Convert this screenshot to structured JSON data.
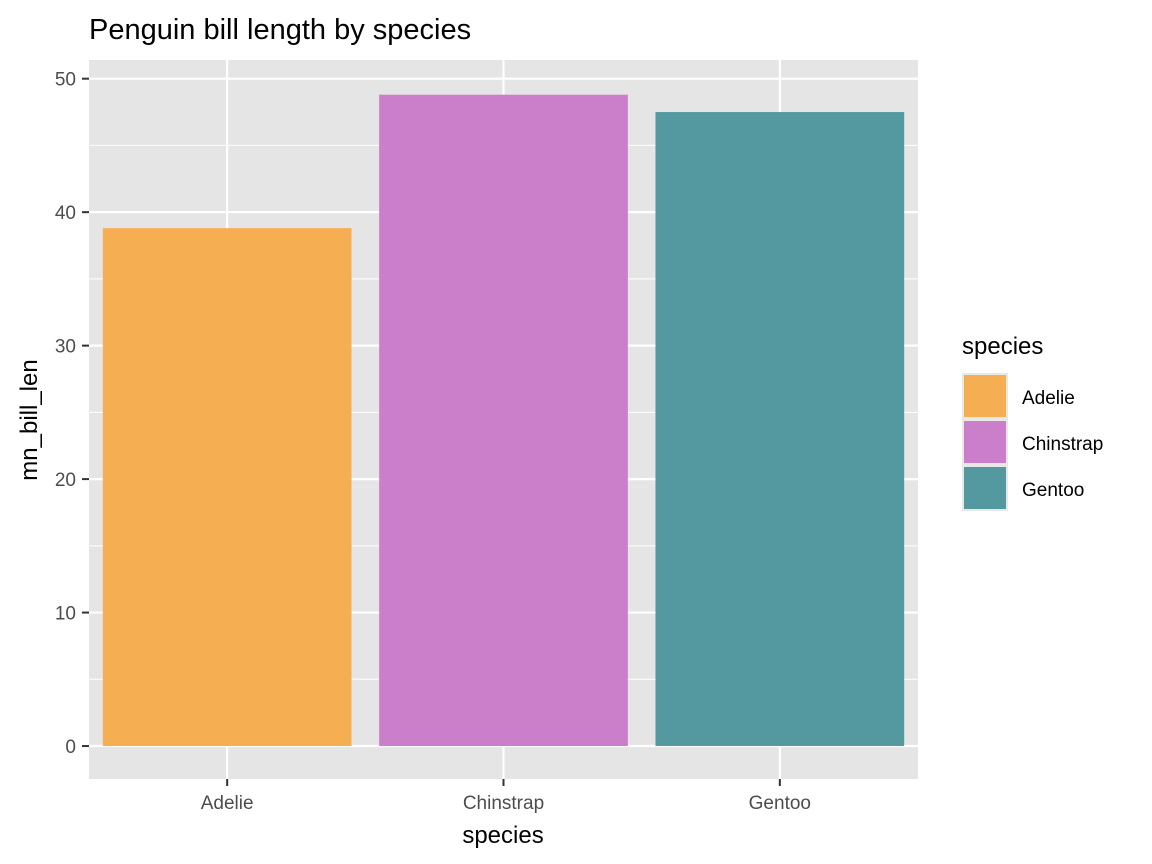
{
  "chart_data": {
    "type": "bar",
    "title": "Penguin bill length by species",
    "xlabel": "species",
    "ylabel": "mn_bill_len",
    "categories": [
      "Adelie",
      "Chinstrap",
      "Gentoo"
    ],
    "values": [
      38.8,
      48.8,
      47.5
    ],
    "colors": [
      "#F6AE52",
      "#CB7FCA",
      "#5599A0"
    ],
    "ylim": [
      -2.47,
      51.4
    ],
    "yticks": [
      0,
      10,
      20,
      30,
      40,
      50
    ],
    "grid": true,
    "panel_background": "#E5E5E5",
    "legend": {
      "title": "species",
      "position": "right",
      "entries": [
        "Adelie",
        "Chinstrap",
        "Gentoo"
      ]
    }
  }
}
